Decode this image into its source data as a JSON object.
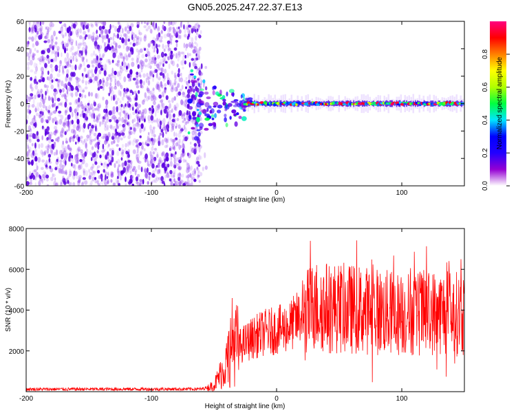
{
  "chart_data": [
    {
      "type": "heatmap",
      "title": "GN05.2025.247.22.37.E13",
      "xlabel": "Height of straight line (km)",
      "ylabel": "Frequency (Hz)",
      "xlim": [
        -200,
        150
      ],
      "ylim": [
        -60,
        60
      ],
      "xticks": [
        -200,
        -100,
        0,
        100
      ],
      "yticks": [
        -60,
        -40,
        -20,
        0,
        20,
        40,
        60
      ],
      "noise_region_x": [
        -200,
        -60
      ],
      "signal": {
        "transition_x": [
          -70,
          -20
        ],
        "line_frequency_hz": 0,
        "line_x": [
          -25,
          150
        ]
      },
      "colorbar": {
        "label": "Normalized spectral amplitude",
        "range": [
          0,
          1
        ],
        "ticks": [
          "0.0",
          "0.2",
          "0.4",
          "0.6",
          "0.8"
        ],
        "colors": [
          "#ffffff",
          "#9400d3",
          "#2200ff",
          "#0000ff",
          "#00e5ff",
          "#00ff40",
          "#b0ff00",
          "#ffff00",
          "#ff8000",
          "#ff0000",
          "#ff0080"
        ]
      }
    },
    {
      "type": "line",
      "xlabel": "Height of straight line (km)",
      "ylabel": "SNR (10 * v/v)",
      "xlim": [
        -200,
        150
      ],
      "ylim": [
        0,
        8000
      ],
      "xticks": [
        -200,
        -100,
        0,
        100
      ],
      "yticks": [
        2000,
        4000,
        6000,
        8000
      ],
      "color": "#ff0000",
      "profile": [
        {
          "x": -200,
          "snr": 120
        },
        {
          "x": -60,
          "snr": 130
        },
        {
          "x": -50,
          "snr": 300
        },
        {
          "x": -40,
          "snr": 1400
        },
        {
          "x": -35,
          "snr": 2600
        },
        {
          "x": -30,
          "snr": 2200
        },
        {
          "x": -20,
          "snr": 2600
        },
        {
          "x": -10,
          "snr": 2900
        },
        {
          "x": 0,
          "snr": 3000
        },
        {
          "x": 10,
          "snr": 3200
        },
        {
          "x": 20,
          "snr": 3700
        },
        {
          "x": 30,
          "snr": 4200
        },
        {
          "x": 50,
          "snr": 4100
        },
        {
          "x": 70,
          "snr": 4000
        },
        {
          "x": 100,
          "snr": 3800
        },
        {
          "x": 130,
          "snr": 3900
        },
        {
          "x": 150,
          "snr": 3800
        }
      ]
    }
  ]
}
